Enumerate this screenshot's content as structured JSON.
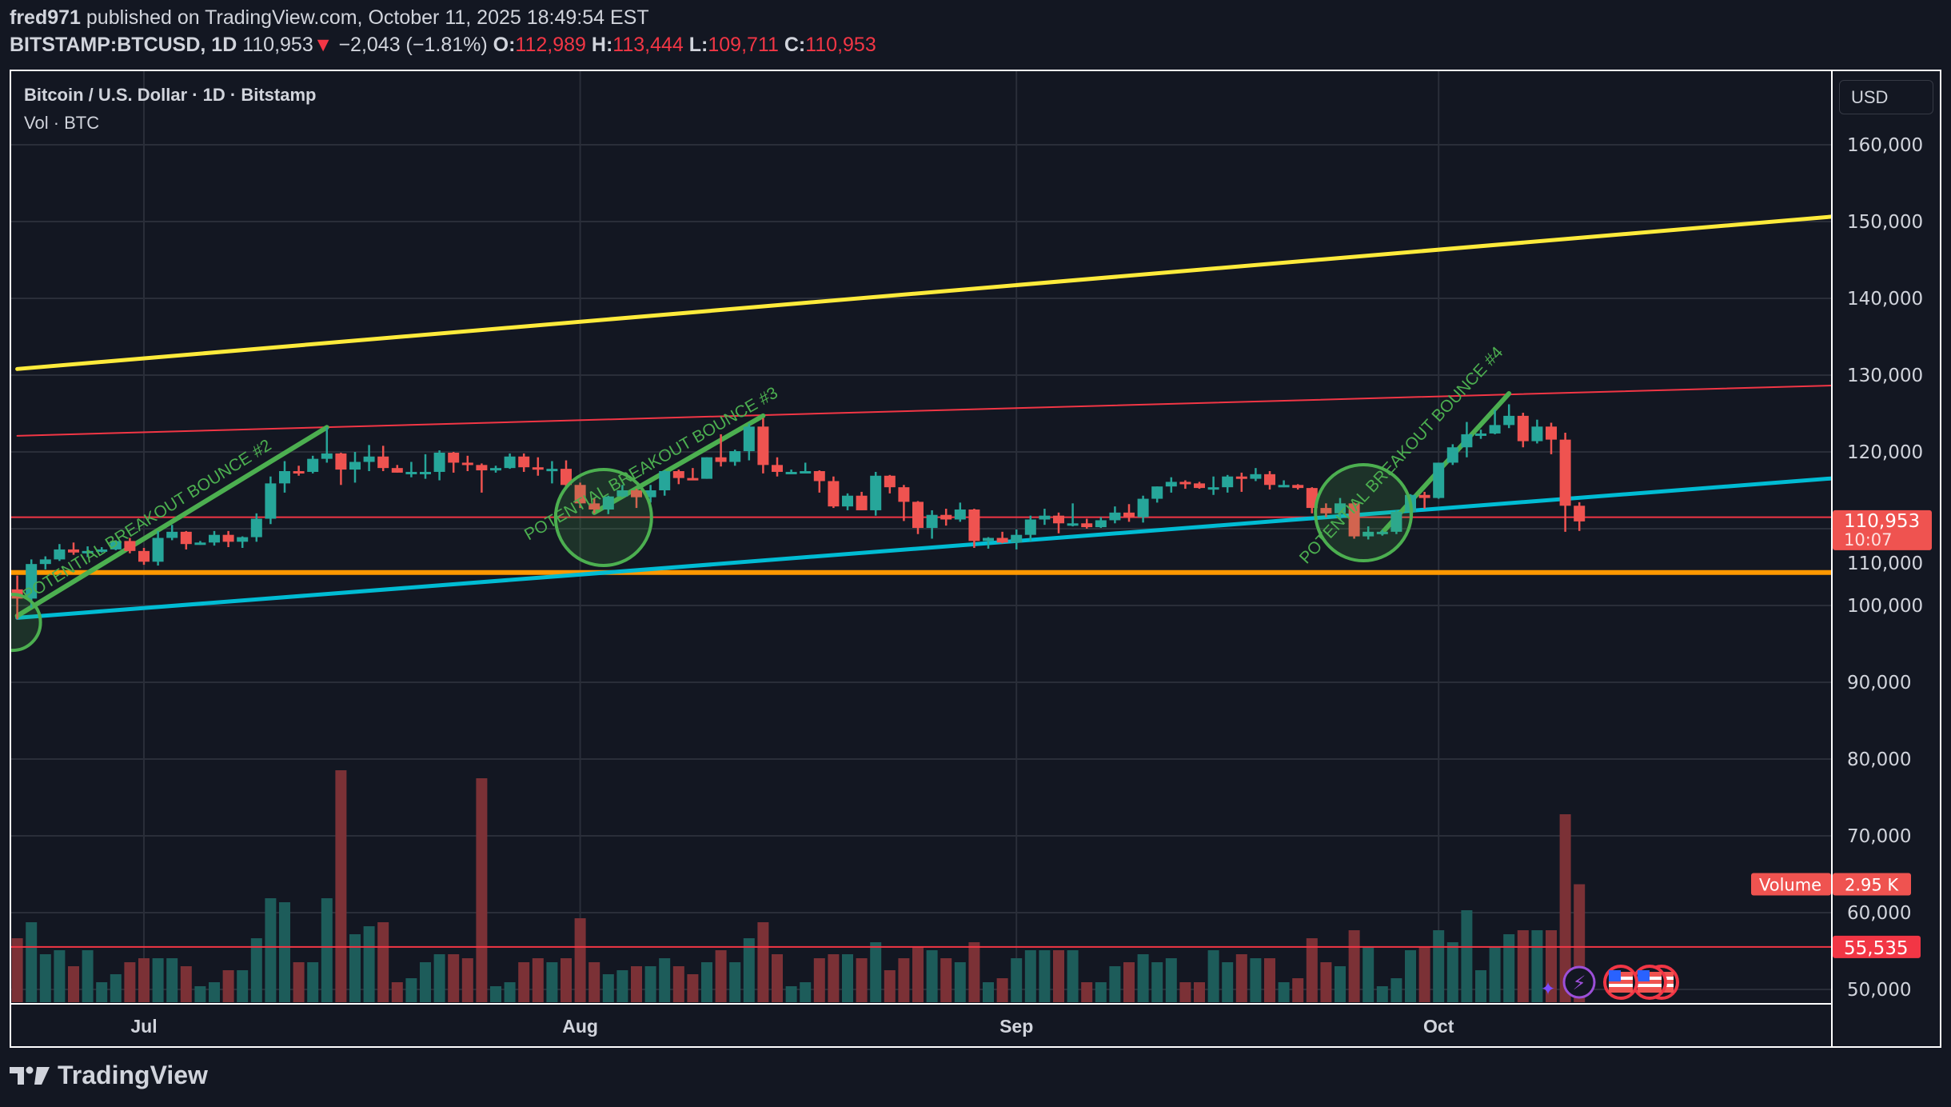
{
  "header": {
    "author": "fred971",
    "published": "published on TradingView.com, October 11, 2025 18:49:54 EST",
    "symbol": "BITSTAMP:BTCUSD, 1D",
    "last": "110,953",
    "change": "−2,043 (−1.81%)",
    "o_label": "O:",
    "o": "112,989",
    "h_label": "H:",
    "h": "113,444",
    "l_label": "L:",
    "l": "109,711",
    "c_label": "C:",
    "c": "110,953"
  },
  "legend": {
    "title": "Bitcoin / U.S. Dollar · 1D · Bitstamp",
    "volume": "Vol · BTC"
  },
  "currency_button": "USD",
  "branding": "TradingView",
  "colors": {
    "up": "#26a69a",
    "down": "#ef5350",
    "background": "#131722",
    "grid": "#2a2e39",
    "yellow_line": "#ffeb3b",
    "red_line": "#f23645",
    "orange_line": "#ff9800",
    "cyan_line": "#00bcd4",
    "annotation_green": "#4caf50"
  },
  "chart_data": {
    "type": "candlestick",
    "price_axis": {
      "ticks": [
        "160,000",
        "150,000",
        "140,000",
        "130,000",
        "120,000",
        "110,000",
        "100,000",
        "90,000",
        "80,000",
        "70,000",
        "60,000",
        "50,000"
      ],
      "ylim": [
        50000,
        160000
      ]
    },
    "time_axis": {
      "ticks": [
        {
          "label": "Jul",
          "date": "2025-07-01"
        },
        {
          "label": "Aug",
          "date": "2025-08-01"
        },
        {
          "label": "Sep",
          "date": "2025-09-01"
        },
        {
          "label": "Oct",
          "date": "2025-10-01"
        }
      ]
    },
    "grid": true,
    "last_price_label": {
      "price": "110,953",
      "countdown": "10:07"
    },
    "volume_label": {
      "name": "Volume",
      "value": "2.95 K"
    },
    "horizontal_line_label": "55,535",
    "columns": [
      "date",
      "open",
      "high",
      "low",
      "close",
      "volume_k"
    ],
    "candles": [
      [
        "2025-06-22",
        102100,
        103900,
        98200,
        100900,
        1.6
      ],
      [
        "2025-06-23",
        100900,
        106000,
        99700,
        105400,
        2.0
      ],
      [
        "2025-06-24",
        105400,
        106400,
        104700,
        106000,
        1.2
      ],
      [
        "2025-06-25",
        106000,
        108000,
        105800,
        107300,
        1.3
      ],
      [
        "2025-06-26",
        107300,
        108200,
        106600,
        106900,
        0.9
      ],
      [
        "2025-06-27",
        106900,
        107700,
        106300,
        107100,
        1.3
      ],
      [
        "2025-06-28",
        107100,
        107600,
        106900,
        107300,
        0.5
      ],
      [
        "2025-06-29",
        107300,
        108500,
        107200,
        108400,
        0.7
      ],
      [
        "2025-06-30",
        108400,
        108800,
        106800,
        107100,
        1.0
      ],
      [
        "2025-07-01",
        107100,
        107500,
        105300,
        105700,
        1.1
      ],
      [
        "2025-07-02",
        105700,
        109700,
        105200,
        108800,
        1.1
      ],
      [
        "2025-07-03",
        108800,
        110500,
        108500,
        109600,
        1.1
      ],
      [
        "2025-07-04",
        109600,
        109700,
        107300,
        108000,
        0.9
      ],
      [
        "2025-07-05",
        108000,
        108400,
        107900,
        108200,
        0.4
      ],
      [
        "2025-07-06",
        108200,
        109700,
        107800,
        109200,
        0.5
      ],
      [
        "2025-07-07",
        109200,
        109700,
        107600,
        108300,
        0.8
      ],
      [
        "2025-07-08",
        108300,
        109000,
        107500,
        108900,
        0.8
      ],
      [
        "2025-07-09",
        108900,
        112000,
        108300,
        111300,
        1.6
      ],
      [
        "2025-07-10",
        111300,
        116800,
        110600,
        115900,
        2.6
      ],
      [
        "2025-07-11",
        115900,
        118800,
        114700,
        117500,
        2.5
      ],
      [
        "2025-07-12",
        117500,
        118200,
        116900,
        117400,
        1.0
      ],
      [
        "2025-07-13",
        117400,
        119500,
        117200,
        119100,
        1.0
      ],
      [
        "2025-07-14",
        119100,
        123200,
        118600,
        119800,
        2.6
      ],
      [
        "2025-07-15",
        119800,
        119900,
        115700,
        117700,
        5.8
      ],
      [
        "2025-07-16",
        117700,
        120000,
        116000,
        118700,
        1.7
      ],
      [
        "2025-07-17",
        118700,
        120900,
        117500,
        119400,
        1.9
      ],
      [
        "2025-07-18",
        119400,
        120800,
        117500,
        117900,
        2.0
      ],
      [
        "2025-07-19",
        117900,
        118300,
        117300,
        117300,
        0.5
      ],
      [
        "2025-07-20",
        117300,
        118700,
        116700,
        117400,
        0.6
      ],
      [
        "2025-07-21",
        117400,
        119700,
        116500,
        117400,
        1.0
      ],
      [
        "2025-07-22",
        117400,
        120200,
        116300,
        119900,
        1.2
      ],
      [
        "2025-07-23",
        119900,
        120000,
        117300,
        118600,
        1.2
      ],
      [
        "2025-07-24",
        118600,
        119500,
        117500,
        118300,
        1.1
      ],
      [
        "2025-07-25",
        118300,
        118500,
        114700,
        117600,
        5.6
      ],
      [
        "2025-07-26",
        117600,
        118200,
        117300,
        117900,
        0.4
      ],
      [
        "2025-07-27",
        117900,
        119800,
        117800,
        119400,
        0.5
      ],
      [
        "2025-07-28",
        119400,
        119800,
        117400,
        118000,
        1.0
      ],
      [
        "2025-07-29",
        118000,
        119300,
        116900,
        117800,
        1.1
      ],
      [
        "2025-07-30",
        117800,
        118800,
        115900,
        117800,
        1.0
      ],
      [
        "2025-07-31",
        117800,
        118900,
        115500,
        115700,
        1.1
      ],
      [
        "2025-08-01",
        115700,
        116000,
        112700,
        113300,
        2.1
      ],
      [
        "2025-08-02",
        113300,
        114000,
        112000,
        112500,
        1.0
      ],
      [
        "2025-08-03",
        112500,
        114300,
        111900,
        114200,
        0.7
      ],
      [
        "2025-08-04",
        114200,
        115700,
        114100,
        115000,
        0.8
      ],
      [
        "2025-08-05",
        115000,
        115200,
        112700,
        114100,
        0.9
      ],
      [
        "2025-08-06",
        114100,
        115700,
        113400,
        115000,
        0.9
      ],
      [
        "2025-08-07",
        115000,
        117600,
        114300,
        117500,
        1.1
      ],
      [
        "2025-08-08",
        117500,
        117700,
        115800,
        116600,
        0.9
      ],
      [
        "2025-08-09",
        116600,
        117900,
        116300,
        116500,
        0.7
      ],
      [
        "2025-08-10",
        116500,
        119300,
        116500,
        119300,
        1.0
      ],
      [
        "2025-08-11",
        119300,
        122300,
        118100,
        118700,
        1.3
      ],
      [
        "2025-08-12",
        118700,
        120300,
        118200,
        120100,
        1.0
      ],
      [
        "2025-08-13",
        120100,
        123700,
        118900,
        123300,
        1.6
      ],
      [
        "2025-08-14",
        123300,
        124400,
        117200,
        118300,
        2.0
      ],
      [
        "2025-08-15",
        118300,
        119300,
        116800,
        117400,
        1.2
      ],
      [
        "2025-08-16",
        117400,
        117700,
        117200,
        117400,
        0.4
      ],
      [
        "2025-08-17",
        117400,
        118600,
        117300,
        117500,
        0.5
      ],
      [
        "2025-08-18",
        117500,
        117600,
        114700,
        116200,
        1.1
      ],
      [
        "2025-08-19",
        116200,
        116800,
        112700,
        112900,
        1.2
      ],
      [
        "2025-08-20",
        112900,
        114600,
        112400,
        114300,
        1.2
      ],
      [
        "2025-08-21",
        114300,
        114800,
        112400,
        112400,
        1.1
      ],
      [
        "2025-08-22",
        112400,
        117400,
        111700,
        116900,
        1.5
      ],
      [
        "2025-08-23",
        116900,
        117000,
        114600,
        115400,
        0.8
      ],
      [
        "2025-08-24",
        115400,
        115700,
        111000,
        113500,
        1.1
      ],
      [
        "2025-08-25",
        113500,
        113600,
        109300,
        110100,
        1.4
      ],
      [
        "2025-08-26",
        110100,
        112400,
        108700,
        111800,
        1.3
      ],
      [
        "2025-08-27",
        111800,
        112600,
        110400,
        111200,
        1.1
      ],
      [
        "2025-08-28",
        111200,
        113400,
        110900,
        112500,
        1.0
      ],
      [
        "2025-08-29",
        112500,
        112600,
        107500,
        108400,
        1.5
      ],
      [
        "2025-08-30",
        108400,
        108900,
        107400,
        108800,
        0.5
      ],
      [
        "2025-08-31",
        108800,
        109600,
        108100,
        108200,
        0.6
      ],
      [
        "2025-09-01",
        108200,
        109900,
        107300,
        109200,
        1.1
      ],
      [
        "2025-09-02",
        109200,
        111700,
        108400,
        111200,
        1.3
      ],
      [
        "2025-09-03",
        111200,
        112600,
        110500,
        111700,
        1.3
      ],
      [
        "2025-09-04",
        111700,
        112100,
        109400,
        110700,
        1.3
      ],
      [
        "2025-09-05",
        110700,
        113300,
        110300,
        110700,
        1.3
      ],
      [
        "2025-09-06",
        110700,
        111300,
        110000,
        110200,
        0.5
      ],
      [
        "2025-09-07",
        110200,
        111500,
        110100,
        111100,
        0.5
      ],
      [
        "2025-09-08",
        111100,
        112900,
        110700,
        112100,
        0.9
      ],
      [
        "2025-09-09",
        112100,
        113200,
        110900,
        111500,
        1.0
      ],
      [
        "2025-09-10",
        111500,
        114300,
        110800,
        113900,
        1.2
      ],
      [
        "2025-09-11",
        113900,
        115500,
        113400,
        115500,
        1.0
      ],
      [
        "2025-09-12",
        115500,
        116700,
        114700,
        116100,
        1.1
      ],
      [
        "2025-09-13",
        116100,
        116300,
        115200,
        115900,
        0.5
      ],
      [
        "2025-09-14",
        115900,
        116100,
        115200,
        115300,
        0.5
      ],
      [
        "2025-09-15",
        115300,
        116800,
        114400,
        115400,
        1.3
      ],
      [
        "2025-09-16",
        115400,
        117000,
        114700,
        116800,
        1.0
      ],
      [
        "2025-09-17",
        116800,
        117300,
        114800,
        116500,
        1.2
      ],
      [
        "2025-09-18",
        116500,
        117900,
        116200,
        117100,
        1.1
      ],
      [
        "2025-09-19",
        117100,
        117500,
        115100,
        115700,
        1.1
      ],
      [
        "2025-09-20",
        115700,
        116300,
        115400,
        115700,
        0.5
      ],
      [
        "2025-09-21",
        115700,
        115800,
        115100,
        115300,
        0.6
      ],
      [
        "2025-09-22",
        115300,
        115400,
        112000,
        112700,
        1.6
      ],
      [
        "2025-09-23",
        112700,
        113300,
        111500,
        112000,
        1.0
      ],
      [
        "2025-09-24",
        112000,
        114000,
        111100,
        113300,
        0.9
      ],
      [
        "2025-09-25",
        113300,
        113400,
        108700,
        109000,
        1.8
      ],
      [
        "2025-09-26",
        109000,
        110300,
        108600,
        109600,
        1.4
      ],
      [
        "2025-09-27",
        109600,
        109800,
        109100,
        109600,
        0.4
      ],
      [
        "2025-09-28",
        109600,
        112400,
        109300,
        112200,
        0.6
      ],
      [
        "2025-09-29",
        112200,
        114500,
        111600,
        114400,
        1.3
      ],
      [
        "2025-09-30",
        114400,
        114800,
        112600,
        114000,
        1.4
      ],
      [
        "2025-10-01",
        114000,
        118600,
        113900,
        118600,
        1.8
      ],
      [
        "2025-10-02",
        118600,
        121000,
        118300,
        120600,
        1.5
      ],
      [
        "2025-10-03",
        120600,
        123900,
        119300,
        122300,
        2.3
      ],
      [
        "2025-10-04",
        122300,
        122900,
        121700,
        122400,
        0.8
      ],
      [
        "2025-10-05",
        122400,
        125500,
        122300,
        123500,
        1.4
      ],
      [
        "2025-10-06",
        123500,
        126200,
        123100,
        124700,
        1.7
      ],
      [
        "2025-10-07",
        124700,
        125100,
        120600,
        121400,
        1.8
      ],
      [
        "2025-10-08",
        121400,
        124200,
        121100,
        123300,
        1.8
      ],
      [
        "2025-10-09",
        123300,
        123800,
        119700,
        121600,
        1.8
      ],
      [
        "2025-10-10",
        121600,
        122500,
        109600,
        112989,
        4.7
      ],
      [
        "2025-10-11",
        112989,
        113444,
        109711,
        110953,
        2.95
      ]
    ],
    "drawings": {
      "trendlines": [
        {
          "name": "yellow-channel-top",
          "color": "#ffeb3b",
          "from": [
            "2025-06-22",
            130800
          ],
          "to": [
            "2025-10-30",
            150800
          ]
        },
        {
          "name": "red-channel-line",
          "color": "#f23645",
          "from": [
            "2025-06-22",
            122100
          ],
          "to": [
            "2025-10-30",
            128700
          ]
        },
        {
          "name": "cyan-support-line",
          "color": "#00bcd4",
          "from": [
            "2025-06-22",
            98400
          ],
          "to": [
            "2025-10-30",
            116700
          ]
        },
        {
          "name": "green-bounce-2",
          "color": "#4caf50",
          "from": [
            "2025-06-22",
            98650
          ],
          "to": [
            "2025-07-14",
            123200
          ]
        },
        {
          "name": "green-bounce-3",
          "color": "#4caf50",
          "from": [
            "2025-08-02",
            112100
          ],
          "to": [
            "2025-08-14",
            124700
          ]
        },
        {
          "name": "green-bounce-4",
          "color": "#4caf50",
          "from": [
            "2025-09-27",
            109500
          ],
          "to": [
            "2025-10-06",
            127600
          ]
        }
      ],
      "horizontal_lines": [
        {
          "name": "red-level",
          "color": "#f23645",
          "price": 111500
        },
        {
          "name": "orange-support",
          "color": "#ff9800",
          "price": 104300
        },
        {
          "name": "volume-level",
          "color": "#f23645",
          "price": 55535
        }
      ],
      "circles": [
        {
          "name": "bounce-circle-1",
          "center": [
            "2025-06-22",
            97800
          ]
        },
        {
          "name": "bounce-circle-2",
          "center": [
            "2025-08-03",
            111460
          ]
        },
        {
          "name": "bounce-circle-3",
          "center": [
            "2025-09-26",
            112080
          ]
        }
      ],
      "texts": [
        "POTENTIAL BREAKOUT BOUNCE #2",
        "POTENTIAL BREAKOUT BOUNCE #3",
        "POTENTIAL BREAKOUT BOUNCE #4"
      ]
    }
  }
}
